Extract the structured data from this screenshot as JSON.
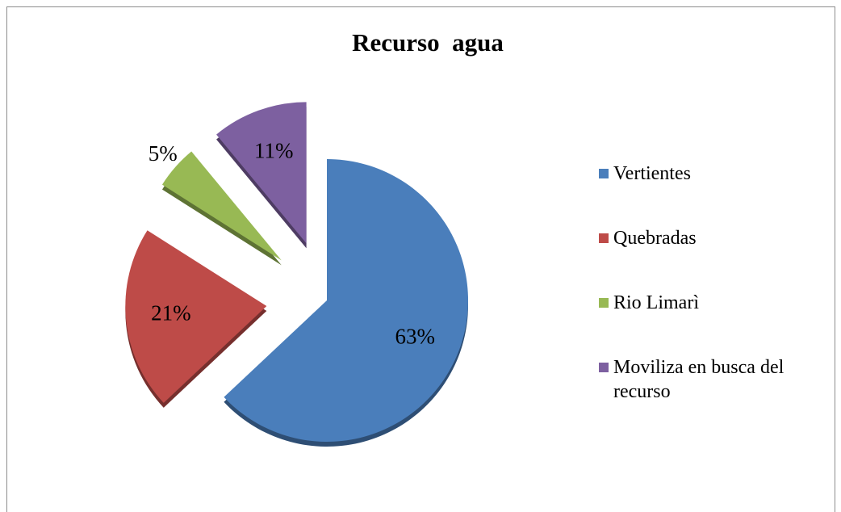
{
  "chart_data": {
    "type": "pie",
    "title": "Recurso  agua",
    "categories": [
      "Vertientes",
      "Quebradas",
      "Rio Limarì",
      "Moviliza en busca del recurso"
    ],
    "values": [
      63,
      21,
      5,
      11
    ],
    "value_labels": [
      "63%",
      "21%",
      "5%",
      "11%"
    ],
    "colors": [
      "#4a7ebb",
      "#be4b48",
      "#98b954",
      "#7d60a0"
    ],
    "legend": "right"
  }
}
